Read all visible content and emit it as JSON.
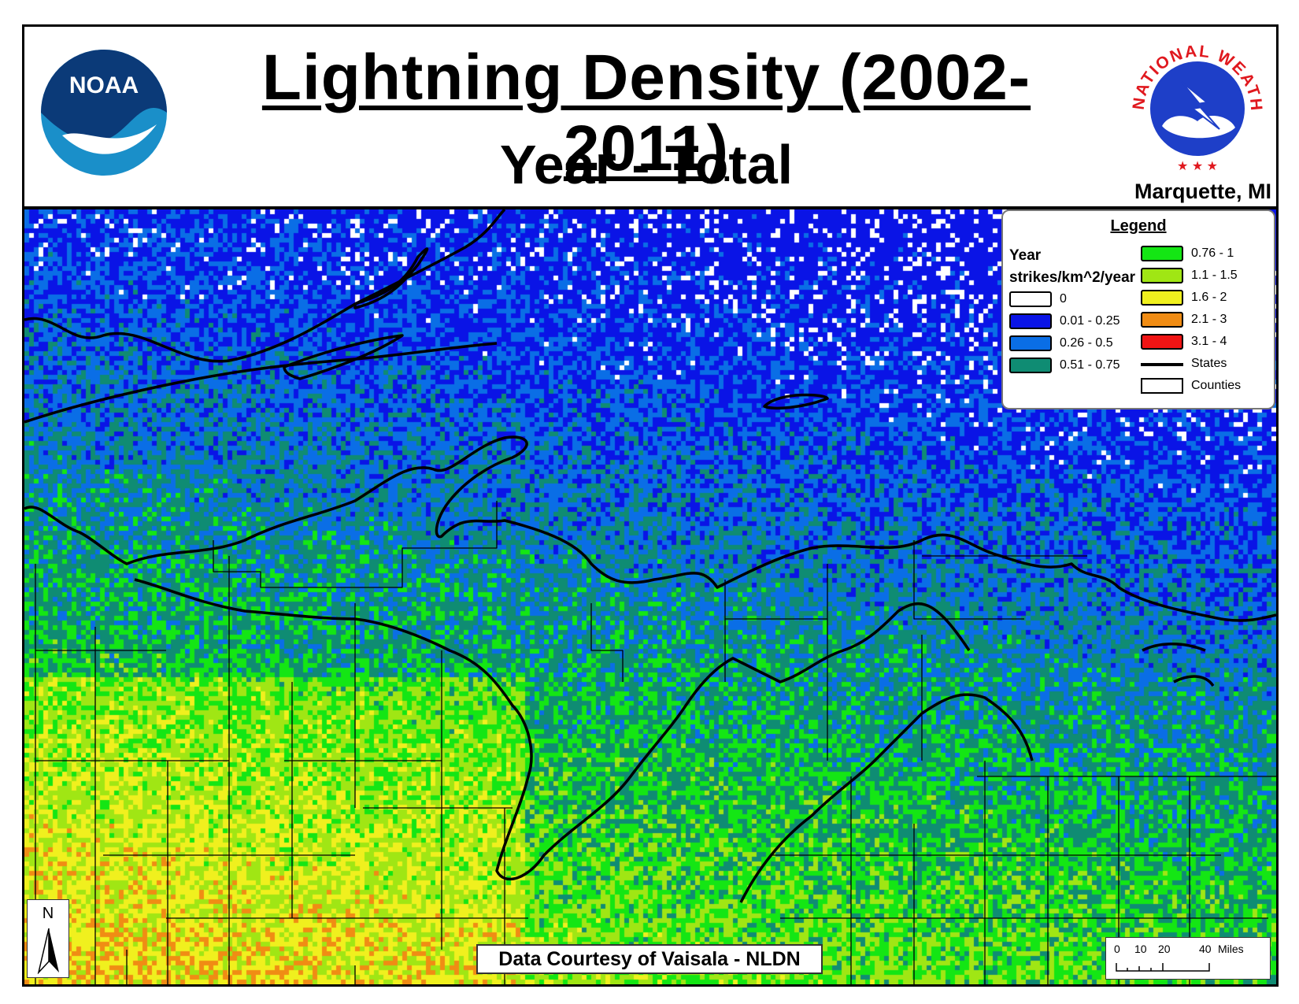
{
  "header": {
    "title": "Lightning Density (2002-2011)",
    "subtitle": "Year - Total",
    "office": "Marquette, MI",
    "noaa_logo_text": "NOAA",
    "nws_logo_text": "NATIONAL WEATHER SERVICE"
  },
  "legend": {
    "title": "Legend",
    "period": "Year",
    "units": "strikes/km^2/year",
    "classes": [
      {
        "label": "0",
        "color": "#ffffff"
      },
      {
        "label": "0.01 - 0.25",
        "color": "#0a14e6"
      },
      {
        "label": "0.26 - 0.5",
        "color": "#0a6ee6"
      },
      {
        "label": "0.51 - 0.75",
        "color": "#0f8c73"
      },
      {
        "label": "0.76 - 1",
        "color": "#14e614"
      },
      {
        "label": "1.1 - 1.5",
        "color": "#a0e614"
      },
      {
        "label": "1.6 - 2",
        "color": "#f0f01e"
      },
      {
        "label": "2.1 - 3",
        "color": "#f08c14"
      },
      {
        "label": "3.1 - 4",
        "color": "#f01414"
      }
    ],
    "states_label": "States",
    "counties_label": "Counties"
  },
  "credit": "Data Courtesy of Vaisala - NLDN",
  "north_arrow": "N",
  "scale_bar": {
    "ticks": [
      "0",
      "10",
      "20",
      "40"
    ],
    "unit": "Miles"
  }
}
